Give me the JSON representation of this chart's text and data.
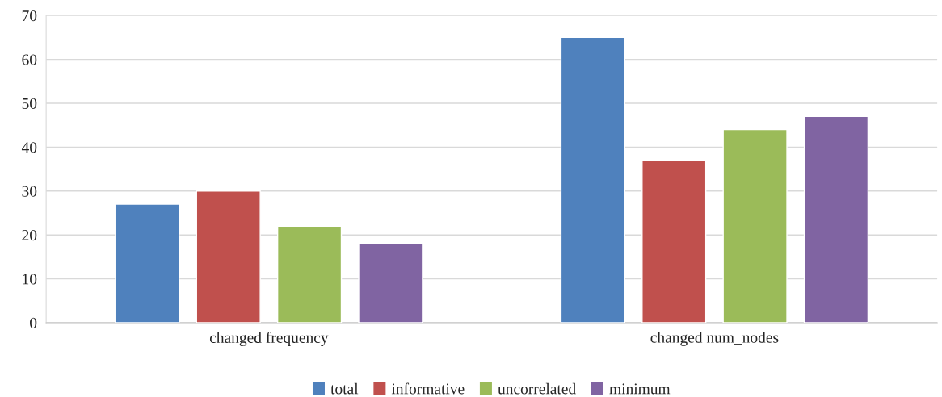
{
  "chart_data": {
    "type": "bar",
    "categories": [
      "changed frequency",
      "changed num_nodes"
    ],
    "series": [
      {
        "name": "total",
        "color": "#4f81bd",
        "values": [
          27,
          65
        ]
      },
      {
        "name": "informative",
        "color": "#c0504d",
        "values": [
          30,
          37
        ]
      },
      {
        "name": "uncorrelated",
        "color": "#9bbb59",
        "values": [
          22,
          44
        ]
      },
      {
        "name": "minimum",
        "color": "#8064a2",
        "values": [
          18,
          47
        ]
      }
    ],
    "ylim": [
      0,
      70
    ],
    "yticks": [
      0,
      10,
      20,
      30,
      40,
      50,
      60,
      70
    ],
    "grid": "y",
    "legend": "bottom"
  }
}
